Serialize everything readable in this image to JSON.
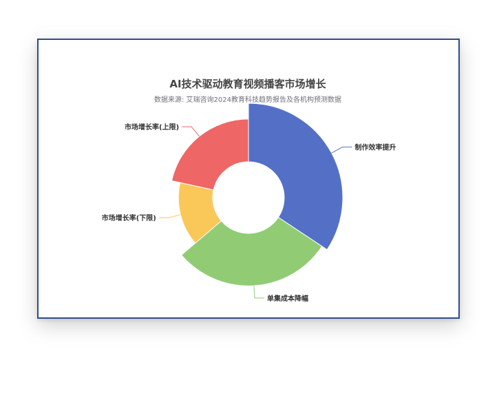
{
  "chart_data": {
    "type": "pie",
    "variant": "rose-donut",
    "title": "AI技术驱动教育视频播客市场增长",
    "subtitle": "数据来源: 艾瑞咨询2024教育科技趋势报告及各机构预测数据",
    "series": [
      {
        "name": "",
        "slices": [
          {
            "name": "制作效率提升",
            "value": 35,
            "color": "#5470c6"
          },
          {
            "name": "单集成本降幅",
            "value": 30,
            "color": "#91cc75"
          },
          {
            "name": "市场增长率(下限)",
            "value": 15,
            "color": "#fac858"
          },
          {
            "name": "市场增长率(上限)",
            "value": 22,
            "color": "#ee6666"
          }
        ]
      }
    ],
    "legend": "none"
  }
}
